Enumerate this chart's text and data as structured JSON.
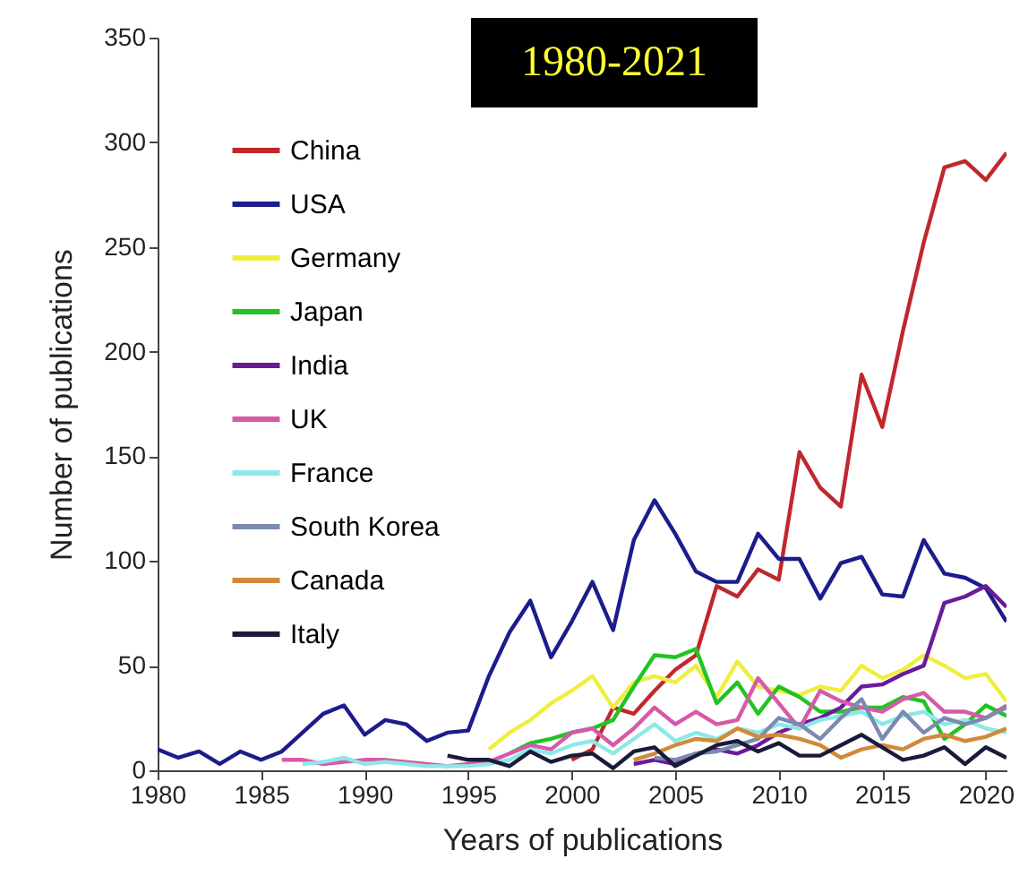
{
  "chart_data": {
    "type": "line",
    "title": "1980-2021",
    "xlabel": "Years of publications",
    "ylabel": "Number of publications",
    "x": [
      1980,
      1981,
      1982,
      1983,
      1984,
      1985,
      1986,
      1987,
      1988,
      1989,
      1990,
      1991,
      1992,
      1993,
      1994,
      1995,
      1996,
      1997,
      1998,
      1999,
      2000,
      2001,
      2002,
      2003,
      2004,
      2005,
      2006,
      2007,
      2008,
      2009,
      2010,
      2011,
      2012,
      2013,
      2014,
      2015,
      2016,
      2017,
      2018,
      2019,
      2020,
      2021
    ],
    "xlim": [
      1980,
      2021
    ],
    "xticks": [
      1980,
      1985,
      1990,
      1995,
      2000,
      2005,
      2010,
      2015,
      2020
    ],
    "ylim": [
      0,
      350
    ],
    "yticks": [
      0,
      50,
      100,
      150,
      200,
      250,
      300,
      350
    ],
    "grid": false,
    "legend": "top left",
    "series": [
      {
        "name": "China",
        "color": "#c0272d",
        "values": [
          null,
          null,
          null,
          null,
          null,
          null,
          null,
          null,
          null,
          null,
          null,
          null,
          null,
          null,
          null,
          null,
          null,
          null,
          null,
          null,
          5,
          10,
          30,
          27,
          38,
          48,
          55,
          88,
          83,
          96,
          91,
          152,
          135,
          126,
          189,
          164,
          210,
          252,
          288,
          291,
          282,
          295
        ]
      },
      {
        "name": "USA",
        "color": "#1c1c8c",
        "values": [
          10,
          6,
          9,
          3,
          9,
          5,
          9,
          18,
          27,
          31,
          17,
          24,
          22,
          14,
          18,
          19,
          45,
          66,
          81,
          54,
          71,
          90,
          67,
          110,
          129,
          113,
          95,
          90,
          90,
          113,
          101,
          101,
          82,
          99,
          102,
          84,
          83,
          110,
          94,
          92,
          87,
          71
        ]
      },
      {
        "name": "Germany",
        "color": "#eeee40",
        "values": [
          null,
          null,
          null,
          null,
          null,
          null,
          null,
          null,
          null,
          null,
          null,
          null,
          null,
          null,
          null,
          null,
          10,
          18,
          24,
          32,
          38,
          45,
          30,
          42,
          45,
          42,
          50,
          35,
          52,
          40,
          38,
          36,
          40,
          38,
          50,
          44,
          48,
          55,
          50,
          44,
          46,
          33
        ]
      },
      {
        "name": "Japan",
        "color": "#22c322",
        "values": [
          null,
          null,
          null,
          null,
          null,
          null,
          null,
          null,
          null,
          null,
          null,
          null,
          null,
          null,
          null,
          null,
          null,
          8,
          13,
          15,
          18,
          20,
          24,
          40,
          55,
          54,
          58,
          32,
          42,
          27,
          40,
          35,
          28,
          28,
          30,
          30,
          35,
          33,
          15,
          22,
          31,
          26
        ]
      },
      {
        "name": "India",
        "color": "#6a1b9a",
        "values": [
          null,
          null,
          null,
          null,
          null,
          null,
          null,
          null,
          null,
          null,
          null,
          null,
          null,
          null,
          null,
          null,
          null,
          null,
          null,
          null,
          null,
          null,
          null,
          3,
          5,
          3,
          8,
          10,
          8,
          12,
          18,
          22,
          25,
          30,
          40,
          41,
          46,
          50,
          80,
          83,
          88,
          78
        ]
      },
      {
        "name": "UK",
        "color": "#d65aa8",
        "values": [
          null,
          null,
          null,
          null,
          null,
          null,
          5,
          5,
          3,
          4,
          5,
          5,
          4,
          3,
          2,
          3,
          4,
          8,
          12,
          10,
          18,
          20,
          12,
          20,
          30,
          22,
          28,
          22,
          24,
          44,
          32,
          20,
          38,
          33,
          30,
          28,
          34,
          37,
          28,
          28,
          25,
          31
        ]
      },
      {
        "name": "France",
        "color": "#8ee8e8",
        "values": [
          null,
          null,
          null,
          null,
          null,
          null,
          null,
          3,
          4,
          6,
          3,
          4,
          3,
          2,
          2,
          2,
          3,
          5,
          10,
          8,
          12,
          14,
          8,
          15,
          22,
          14,
          18,
          15,
          20,
          18,
          22,
          20,
          24,
          26,
          28,
          22,
          26,
          28,
          22,
          24,
          20,
          18
        ]
      },
      {
        "name": "South Korea",
        "color": "#7a8ab0",
        "values": [
          null,
          null,
          null,
          null,
          null,
          null,
          null,
          null,
          null,
          null,
          null,
          null,
          null,
          null,
          null,
          null,
          null,
          null,
          null,
          null,
          null,
          null,
          null,
          null,
          6,
          5,
          8,
          9,
          12,
          15,
          25,
          22,
          15,
          25,
          34,
          15,
          28,
          18,
          25,
          22,
          25,
          30
        ]
      },
      {
        "name": "Canada",
        "color": "#d08a3a",
        "values": [
          null,
          null,
          null,
          null,
          null,
          null,
          null,
          null,
          null,
          null,
          null,
          null,
          null,
          null,
          null,
          null,
          null,
          null,
          null,
          null,
          null,
          null,
          null,
          5,
          8,
          12,
          15,
          14,
          20,
          16,
          17,
          15,
          12,
          6,
          10,
          12,
          10,
          15,
          17,
          14,
          16,
          20
        ]
      },
      {
        "name": "Italy",
        "color": "#1a1a3a",
        "values": [
          null,
          null,
          null,
          null,
          null,
          null,
          null,
          null,
          null,
          null,
          null,
          null,
          null,
          null,
          7,
          5,
          5,
          2,
          9,
          4,
          7,
          8,
          1,
          9,
          11,
          2,
          7,
          12,
          14,
          9,
          13,
          7,
          7,
          12,
          17,
          11,
          5,
          7,
          11,
          3,
          11,
          6
        ]
      }
    ]
  }
}
